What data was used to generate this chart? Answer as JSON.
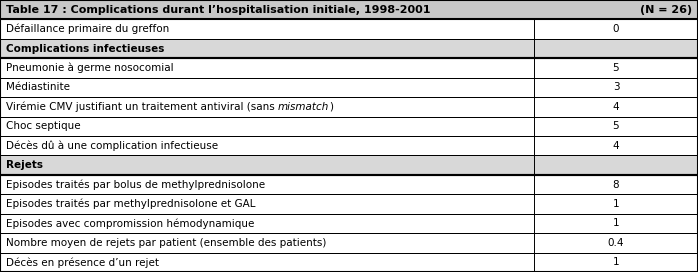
{
  "title": "Table 17 : Complications durant l’hospitalisation initiale, 1998-2001",
  "title_n": "(N = 26)",
  "rows": [
    {
      "label": "Défaillance primaire du greffon",
      "value": "0",
      "bold": false,
      "section_header": false,
      "has_italic": false
    },
    {
      "label": "Complications infectieuses",
      "value": "",
      "bold": true,
      "section_header": true,
      "has_italic": false
    },
    {
      "label": "Pneumonie à germe nosocomial",
      "value": "5",
      "bold": false,
      "section_header": false,
      "has_italic": false
    },
    {
      "label": "Médiastinite",
      "value": "3",
      "bold": false,
      "section_header": false,
      "has_italic": false
    },
    {
      "label_before": "Virémie CMV justifiant un traitement antiviral (sans ",
      "label_italic": "mismatch",
      "label_after": ")",
      "value": "4",
      "bold": false,
      "section_header": false,
      "has_italic": true
    },
    {
      "label": "Choc septique",
      "value": "5",
      "bold": false,
      "section_header": false,
      "has_italic": false
    },
    {
      "label": "Décès dû à une complication infectieuse",
      "value": "4",
      "bold": false,
      "section_header": false,
      "has_italic": false
    },
    {
      "label": "Rejets",
      "value": "",
      "bold": true,
      "section_header": true,
      "has_italic": false
    },
    {
      "label": "Episodes traités par bolus de methylprednisolone",
      "value": "8",
      "bold": false,
      "section_header": false,
      "has_italic": false
    },
    {
      "label": "Episodes traités par methylprednisolone et GAL",
      "value": "1",
      "bold": false,
      "section_header": false,
      "has_italic": false
    },
    {
      "label": "Episodes avec compromission hémodynamique",
      "value": "1",
      "bold": false,
      "section_header": false,
      "has_italic": false
    },
    {
      "label": "Nombre moyen de rejets par patient (ensemble des patients)",
      "value": "0.4",
      "bold": false,
      "section_header": false,
      "has_italic": false
    },
    {
      "label": "Décès en présence d’un rejet",
      "value": "1",
      "bold": false,
      "section_header": false,
      "has_italic": false
    }
  ],
  "col_split": 0.765,
  "bg_color": "#ffffff",
  "border_color": "#000000",
  "section_bg": "#d8d8d8",
  "header_bg": "#c8c8c8",
  "font_size": 7.5,
  "title_font_size": 8.0
}
